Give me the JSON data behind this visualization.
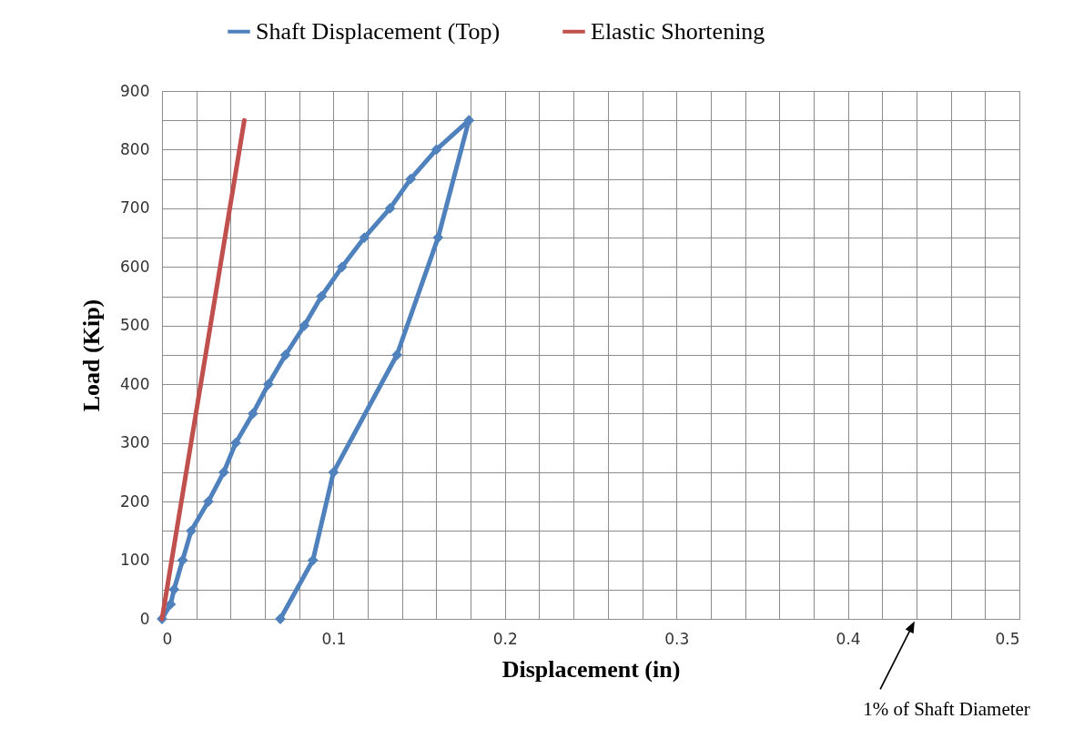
{
  "chart_data": {
    "type": "line",
    "xlabel": "Displacement (in)",
    "ylabel": "Load (Kip)",
    "legend": "top",
    "grid": true,
    "xlim": [
      0,
      0.5
    ],
    "xticks": [
      0,
      {
        "value": 0.02,
        "label": null
      },
      {
        "value": 0.04,
        "label": null
      },
      {
        "value": 0.06,
        "label": null
      },
      {
        "value": 0.08,
        "label": null
      },
      0.1,
      {
        "value": 0.12,
        "label": null
      },
      {
        "value": 0.14,
        "label": null
      },
      {
        "value": 0.16,
        "label": null
      },
      {
        "value": 0.18,
        "label": null
      },
      0.2,
      {
        "value": 0.22,
        "label": null
      },
      {
        "value": 0.24,
        "label": null
      },
      {
        "value": 0.26,
        "label": null
      },
      {
        "value": 0.28,
        "label": null
      },
      0.3,
      {
        "value": 0.32,
        "label": null
      },
      {
        "value": 0.34,
        "label": null
      },
      {
        "value": 0.36,
        "label": null
      },
      {
        "value": 0.38,
        "label": null
      },
      0.4,
      {
        "value": 0.42,
        "label": null
      },
      {
        "value": 0.44,
        "label": null
      },
      {
        "value": 0.46,
        "label": null
      },
      {
        "value": 0.48,
        "label": null
      },
      0.5
    ],
    "ylim": [
      0,
      900
    ],
    "yticks": [
      0,
      {
        "value": 50,
        "label": null
      },
      100,
      {
        "value": 150,
        "label": null
      },
      200,
      {
        "value": 250,
        "label": null
      },
      300,
      {
        "value": 350,
        "label": null
      },
      400,
      {
        "value": 450,
        "label": null
      },
      500,
      {
        "value": 550,
        "label": null
      },
      600,
      {
        "value": 650,
        "label": null
      },
      700,
      {
        "value": 750,
        "label": null
      },
      800,
      {
        "value": 850,
        "label": null
      },
      900
    ],
    "series": [
      {
        "name": "Shaft Displacement (Top)",
        "color": "#4f81bd",
        "marker": "diamond",
        "x": [
          0,
          0.005,
          0.007,
          0.012,
          0.017,
          0.027,
          0.036,
          0.043,
          0.053,
          0.062,
          0.072,
          0.083,
          0.093,
          0.105,
          0.118,
          0.133,
          0.145,
          0.16,
          0.179,
          0.161,
          0.137,
          0.1,
          0.088,
          0.069
        ],
        "values": [
          0,
          25,
          50,
          100,
          150,
          200,
          250,
          300,
          350,
          400,
          450,
          500,
          550,
          600,
          650,
          700,
          750,
          800,
          850,
          650,
          450,
          250,
          100,
          0
        ]
      },
      {
        "name": "Elastic Shortening",
        "color": "#c0504d",
        "marker": "none",
        "x": [
          0,
          0.048
        ],
        "values": [
          0,
          850
        ]
      }
    ],
    "annotations": [
      "1% of Shaft Diameter"
    ]
  }
}
